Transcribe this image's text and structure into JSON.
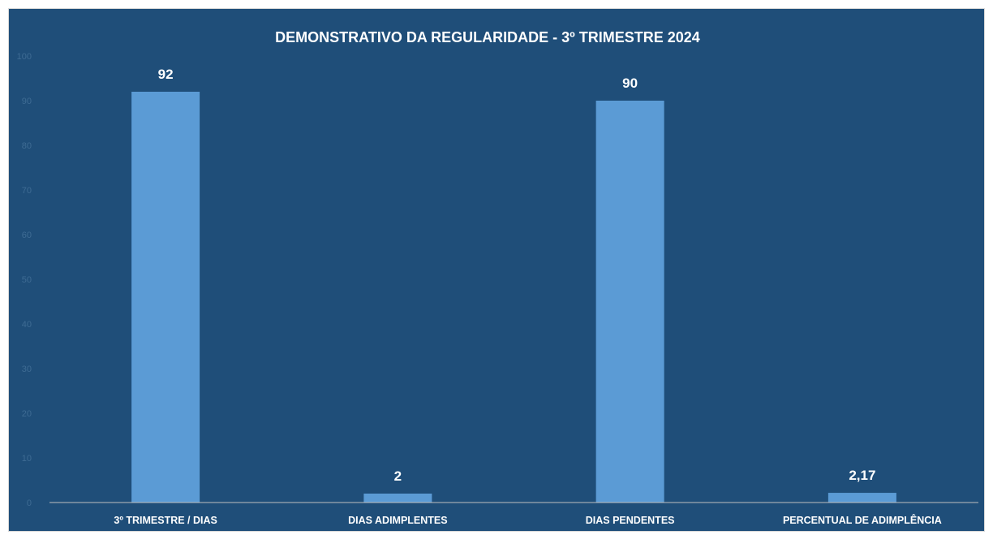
{
  "chart_data": {
    "type": "bar",
    "title": "DEMONSTRATIVO DA REGULARIDADE - 3º TRIMESTRE 2024",
    "categories": [
      "3º TRIMESTRE / DIAS",
      "DIAS ADIMPLENTES",
      "DIAS PENDENTES",
      "PERCENTUAL DE ADIMPLÊNCIA"
    ],
    "values": [
      92,
      2,
      90,
      2.17
    ],
    "value_labels": [
      "92",
      "2",
      "90",
      "2,17"
    ],
    "y_ticks": [
      "0",
      "10",
      "20",
      "30",
      "40",
      "50",
      "60",
      "70",
      "80",
      "90",
      "100"
    ],
    "ylim": [
      0,
      100
    ],
    "xlabel": "",
    "ylabel": "",
    "grid": false,
    "legend": "none",
    "colors": {
      "background": "#1f4e79",
      "bar": "#5b9bd5",
      "axis_line": "#bfbfbf",
      "text": "#ffffff",
      "tick_text": "#3e6b93"
    }
  }
}
